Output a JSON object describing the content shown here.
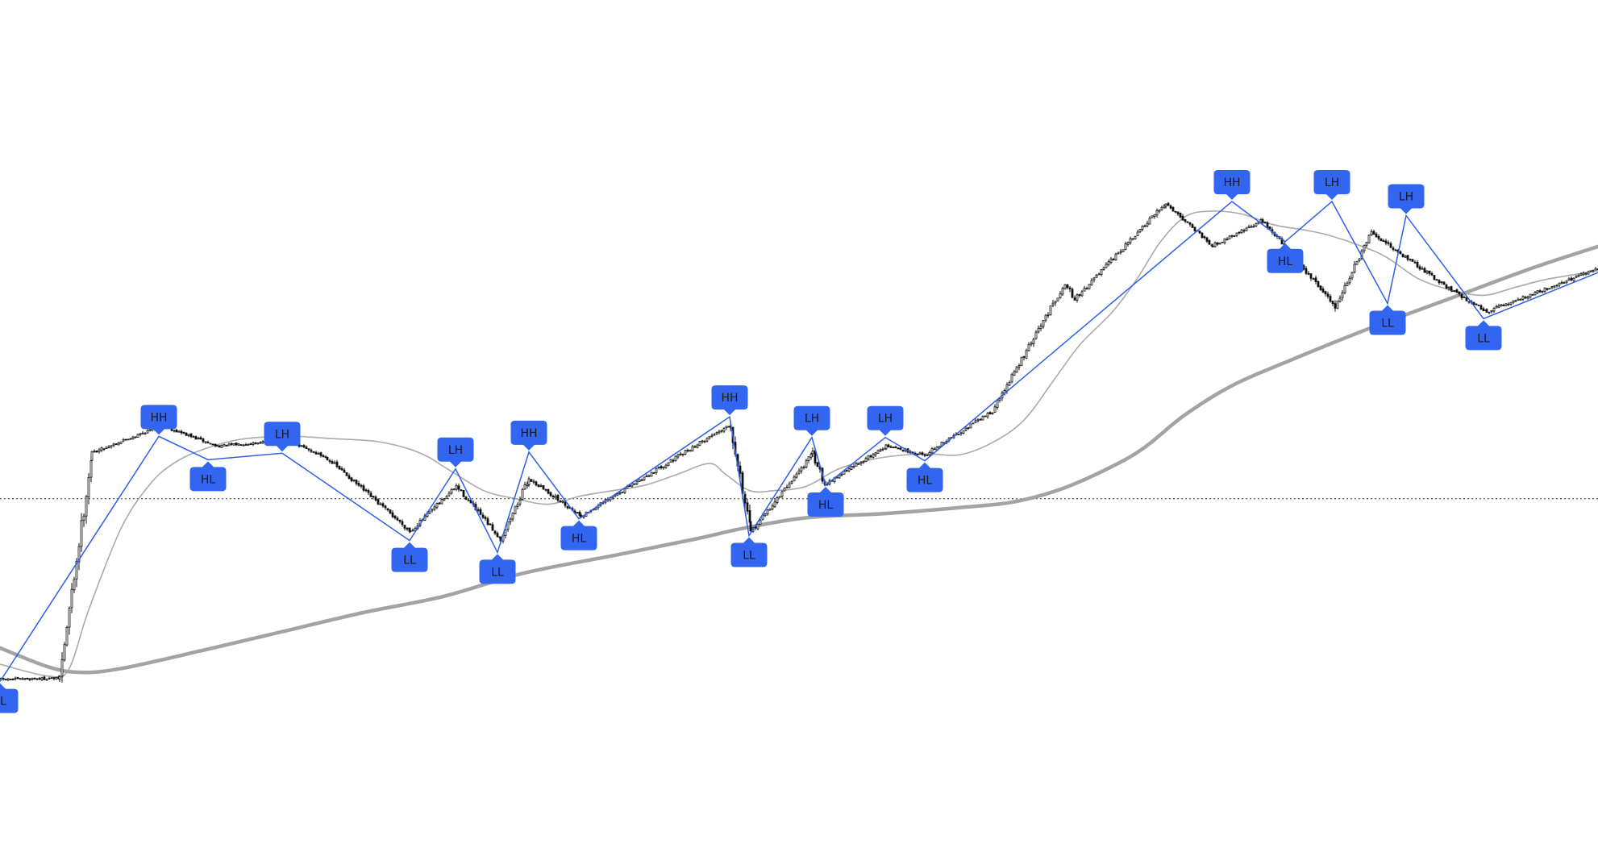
{
  "chart_data": {
    "type": "candlestick",
    "price_range": [
      0,
      1000
    ],
    "candles": {
      "segments": [
        {
          "from": 0,
          "to": 73,
          "start": 122,
          "end": 124
        },
        {
          "from": 73,
          "to": 113,
          "start": 124,
          "end": 540
        },
        {
          "from": 113,
          "to": 200,
          "start": 540,
          "end": 590
        },
        {
          "from": 200,
          "to": 268,
          "start": 590,
          "end": 552
        },
        {
          "from": 268,
          "to": 355,
          "start": 552,
          "end": 563
        },
        {
          "from": 355,
          "to": 405,
          "start": 563,
          "end": 530
        },
        {
          "from": 405,
          "to": 508,
          "start": 530,
          "end": 395
        },
        {
          "from": 508,
          "to": 565,
          "start": 395,
          "end": 478
        },
        {
          "from": 565,
          "to": 620,
          "start": 478,
          "end": 381
        },
        {
          "from": 620,
          "to": 655,
          "start": 381,
          "end": 492
        },
        {
          "from": 655,
          "to": 720,
          "start": 492,
          "end": 423
        },
        {
          "from": 720,
          "to": 905,
          "start": 423,
          "end": 593
        },
        {
          "from": 905,
          "to": 930,
          "start": 593,
          "end": 393
        },
        {
          "from": 930,
          "to": 1007,
          "start": 393,
          "end": 538
        },
        {
          "from": 1007,
          "to": 1022,
          "start": 538,
          "end": 482
        },
        {
          "from": 1022,
          "to": 1098,
          "start": 482,
          "end": 552
        },
        {
          "from": 1098,
          "to": 1146,
          "start": 552,
          "end": 536
        },
        {
          "from": 1146,
          "to": 1230,
          "start": 536,
          "end": 617
        },
        {
          "from": 1230,
          "to": 1320,
          "start": 617,
          "end": 853
        },
        {
          "from": 1320,
          "to": 1332,
          "start": 853,
          "end": 823
        },
        {
          "from": 1332,
          "to": 1445,
          "start": 823,
          "end": 1000
        },
        {
          "from": 1445,
          "to": 1503,
          "start": 1000,
          "end": 922
        },
        {
          "from": 1503,
          "to": 1565,
          "start": 922,
          "end": 968
        },
        {
          "from": 1565,
          "to": 1655,
          "start": 968,
          "end": 810
        },
        {
          "from": 1655,
          "to": 1700,
          "start": 810,
          "end": 945
        },
        {
          "from": 1700,
          "to": 1800,
          "start": 945,
          "end": 839
        },
        {
          "from": 1800,
          "to": 1843,
          "start": 839,
          "end": 800
        },
        {
          "from": 1843,
          "to": 1982,
          "start": 800,
          "end": 880
        }
      ]
    },
    "moving_averages": [
      {
        "id": "fast-ma",
        "color": "#aaaaaa",
        "width": 1.6,
        "points": [
          [
            0,
            150
          ],
          [
            60,
            128
          ],
          [
            85,
            140
          ],
          [
            110,
            250
          ],
          [
            150,
            400
          ],
          [
            185,
            480
          ],
          [
            215,
            520
          ],
          [
            250,
            545
          ],
          [
            300,
            565
          ],
          [
            360,
            570
          ],
          [
            410,
            566
          ],
          [
            470,
            560
          ],
          [
            520,
            540
          ],
          [
            555,
            510
          ],
          [
            600,
            470
          ],
          [
            640,
            455
          ],
          [
            680,
            445
          ],
          [
            720,
            460
          ],
          [
            760,
            470
          ],
          [
            800,
            480
          ],
          [
            840,
            500
          ],
          [
            880,
            520
          ],
          [
            900,
            500
          ],
          [
            930,
            470
          ],
          [
            960,
            470
          ],
          [
            1000,
            478
          ],
          [
            1040,
            510
          ],
          [
            1080,
            527
          ],
          [
            1110,
            534
          ],
          [
            1150,
            538
          ],
          [
            1190,
            536
          ],
          [
            1230,
            558
          ],
          [
            1270,
            600
          ],
          [
            1310,
            680
          ],
          [
            1340,
            740
          ],
          [
            1380,
            800
          ],
          [
            1410,
            860
          ],
          [
            1440,
            930
          ],
          [
            1470,
            975
          ],
          [
            1500,
            985
          ],
          [
            1540,
            980
          ],
          [
            1580,
            960
          ],
          [
            1620,
            950
          ],
          [
            1650,
            940
          ],
          [
            1690,
            920
          ],
          [
            1720,
            900
          ],
          [
            1760,
            860
          ],
          [
            1800,
            840
          ],
          [
            1840,
            830
          ],
          [
            1880,
            845
          ],
          [
            1920,
            860
          ],
          [
            1982,
            875
          ]
        ]
      },
      {
        "id": "slow-ma",
        "color": "#a3a3a3",
        "width": 4.5,
        "points": [
          [
            0,
            180
          ],
          [
            60,
            145
          ],
          [
            100,
            135
          ],
          [
            150,
            142
          ],
          [
            250,
            175
          ],
          [
            350,
            210
          ],
          [
            450,
            245
          ],
          [
            550,
            275
          ],
          [
            650,
            318
          ],
          [
            760,
            350
          ],
          [
            860,
            380
          ],
          [
            920,
            400
          ],
          [
            1000,
            420
          ],
          [
            1100,
            428
          ],
          [
            1200,
            440
          ],
          [
            1260,
            450
          ],
          [
            1320,
            475
          ],
          [
            1380,
            515
          ],
          [
            1420,
            550
          ],
          [
            1470,
            610
          ],
          [
            1530,
            665
          ],
          [
            1600,
            710
          ],
          [
            1700,
            770
          ],
          [
            1800,
            825
          ],
          [
            1900,
            880
          ],
          [
            1982,
            920
          ]
        ]
      }
    ],
    "pivots": [
      {
        "label": "LL",
        "x": 0,
        "price": 118,
        "type": "low"
      },
      {
        "label": "HH",
        "x": 197,
        "price": 570,
        "type": "high"
      },
      {
        "label": "HL",
        "x": 258,
        "price": 527,
        "type": "low"
      },
      {
        "label": "LH",
        "x": 350,
        "price": 539,
        "type": "high"
      },
      {
        "label": "LL",
        "x": 508,
        "price": 378,
        "type": "low"
      },
      {
        "label": "LH",
        "x": 565,
        "price": 510,
        "type": "high"
      },
      {
        "label": "LL",
        "x": 617,
        "price": 356,
        "type": "low"
      },
      {
        "label": "HH",
        "x": 656,
        "price": 541,
        "type": "high"
      },
      {
        "label": "HL",
        "x": 718,
        "price": 418,
        "type": "low"
      },
      {
        "label": "HH",
        "x": 905,
        "price": 606,
        "type": "high"
      },
      {
        "label": "LL",
        "x": 929,
        "price": 387,
        "type": "low"
      },
      {
        "label": "LH",
        "x": 1007,
        "price": 568,
        "type": "high"
      },
      {
        "label": "HL",
        "x": 1024,
        "price": 480,
        "type": "low"
      },
      {
        "label": "LH",
        "x": 1098,
        "price": 568,
        "type": "high"
      },
      {
        "label": "HL",
        "x": 1147,
        "price": 525,
        "type": "low"
      },
      {
        "label": "HH",
        "x": 1528,
        "price": 1003,
        "type": "high"
      },
      {
        "label": "HL",
        "x": 1594,
        "price": 929,
        "type": "low"
      },
      {
        "label": "LH",
        "x": 1652,
        "price": 1003,
        "type": "high"
      },
      {
        "label": "LL",
        "x": 1721,
        "price": 815,
        "type": "low"
      },
      {
        "label": "LH",
        "x": 1744,
        "price": 977,
        "type": "high"
      },
      {
        "label": "LL",
        "x": 1840,
        "price": 787,
        "type": "low"
      },
      {
        "label": "",
        "x": 1982,
        "price": 872,
        "type": "end"
      }
    ],
    "reference_line": {
      "price": 455,
      "style": "dotted"
    },
    "colors": {
      "candle": "#111111",
      "zigzag": "#2f5ee8",
      "label_bg": "#3366f0",
      "label_text": "#1a1a1a",
      "reference_line": "#333333"
    },
    "grid": false,
    "legend": "none"
  }
}
